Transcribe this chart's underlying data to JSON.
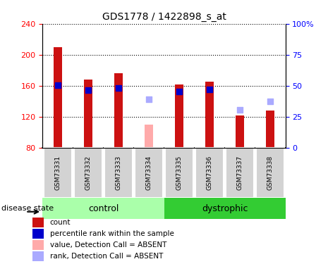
{
  "title": "GDS1778 / 1422898_s_at",
  "samples": [
    "GSM73331",
    "GSM73332",
    "GSM73333",
    "GSM73334",
    "GSM73335",
    "GSM73336",
    "GSM73337",
    "GSM73338"
  ],
  "red_bar_values": [
    210,
    168,
    176,
    null,
    162,
    165,
    122,
    128
  ],
  "red_bar_absent": [
    null,
    null,
    null,
    110,
    null,
    null,
    null,
    null
  ],
  "blue_dot_values": [
    161,
    154,
    157,
    null,
    153,
    155,
    null,
    null
  ],
  "blue_dot_absent": [
    null,
    null,
    null,
    143,
    null,
    null,
    129,
    140
  ],
  "ylim_left": [
    80,
    240
  ],
  "ylim_right": [
    0,
    100
  ],
  "yticks_left": [
    80,
    120,
    160,
    200,
    240
  ],
  "yticks_right": [
    0,
    25,
    50,
    75,
    100
  ],
  "control_color": "#aaffaa",
  "dystrophic_color": "#33cc33",
  "bar_color_present": "#cc1111",
  "bar_color_absent": "#ffaaaa",
  "dot_color_present": "#0000cc",
  "dot_color_absent": "#aaaaff",
  "legend_items": [
    {
      "label": "count",
      "color": "#cc1111"
    },
    {
      "label": "percentile rank within the sample",
      "color": "#0000cc"
    },
    {
      "label": "value, Detection Call = ABSENT",
      "color": "#ffaaaa"
    },
    {
      "label": "rank, Detection Call = ABSENT",
      "color": "#aaaaff"
    }
  ]
}
